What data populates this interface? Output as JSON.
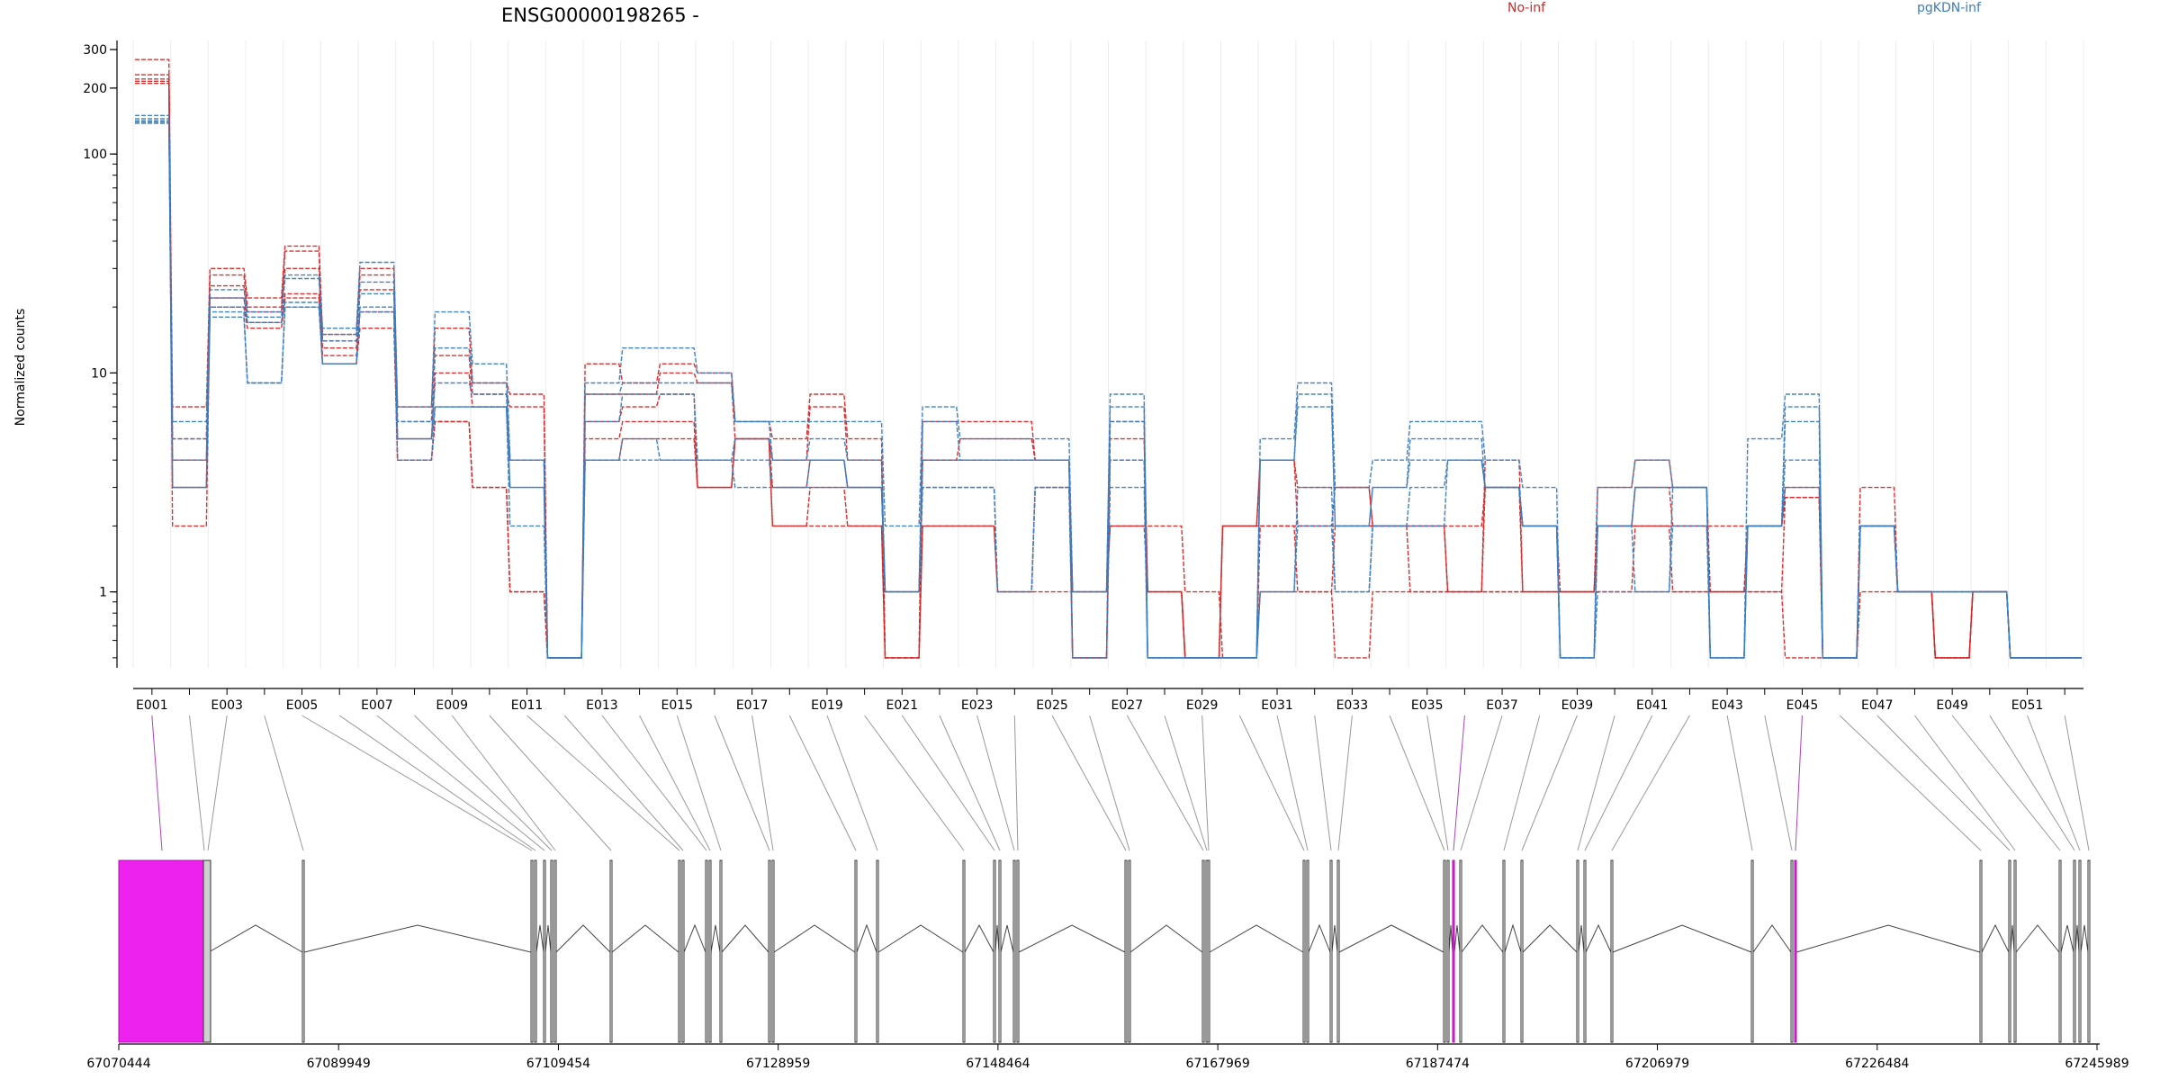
{
  "chart_data": {
    "type": "line",
    "title": "ENSG00000198265 -",
    "ylabel": "Normalized counts",
    "xlabel": "",
    "y_scale": "log",
    "ylim": [
      0.45,
      330
    ],
    "y_ticks": [
      1,
      10,
      100,
      200,
      300
    ],
    "y_tick_labels": [
      "1",
      "10",
      "100",
      "200",
      "300"
    ],
    "grid": "vertical lines at exon boundaries",
    "legend_position": "top",
    "legend": [
      {
        "name": "No-inf",
        "color": "#d62728"
      },
      {
        "name": "pgKDN-inf",
        "color": "#3a7dbf"
      }
    ],
    "categories": [
      "E001",
      "E002",
      "E003",
      "E004",
      "E005",
      "E006",
      "E007",
      "E008",
      "E009",
      "E010",
      "E011",
      "E012",
      "E013",
      "E014",
      "E015",
      "E016",
      "E017",
      "E018",
      "E019",
      "E020",
      "E021",
      "E022",
      "E023",
      "E024",
      "E025",
      "E026",
      "E027",
      "E028",
      "E029",
      "E030",
      "E031",
      "E032",
      "E033",
      "E034",
      "E035",
      "E036",
      "E037",
      "E038",
      "E039",
      "E040",
      "E041",
      "E042",
      "E043",
      "E044",
      "E045",
      "E046",
      "E047",
      "E048",
      "E049",
      "E050",
      "E051",
      "E052"
    ],
    "x_tick_labels": [
      "E001",
      "E003",
      "E005",
      "E007",
      "E009",
      "E011",
      "E013",
      "E015",
      "E017",
      "E019",
      "E021",
      "E023",
      "E025",
      "E027",
      "E029",
      "E031",
      "E033",
      "E035",
      "E037",
      "E039",
      "E041",
      "E043",
      "E045",
      "E047",
      "E049",
      "E051"
    ],
    "series": [
      {
        "name": "No-inf",
        "color": "#d62728",
        "values": [
          270,
          7,
          30,
          22,
          38,
          15,
          30,
          7,
          16,
          9,
          8,
          0.5,
          11,
          9,
          11,
          10,
          6,
          5,
          8,
          5,
          0.5,
          6,
          6,
          6,
          4,
          0.5,
          6,
          1,
          0.5,
          2,
          4,
          3,
          3,
          2,
          2,
          1,
          4,
          1,
          1,
          3,
          4,
          3,
          1,
          2,
          3,
          0.5,
          3,
          1,
          0.5,
          1,
          0.5,
          0.5
        ]
      },
      {
        "name": "No-inf",
        "color": "#d62728",
        "values": [
          230,
          5,
          28,
          20,
          36,
          14,
          28,
          6,
          12,
          8,
          7,
          0.5,
          8,
          8,
          10,
          9,
          5,
          4,
          7,
          4,
          0.5,
          4,
          5,
          5,
          4,
          0.5,
          5,
          1,
          0.5,
          2,
          4,
          2,
          3,
          2,
          2,
          1,
          3,
          1,
          1,
          2,
          3,
          2,
          1,
          2,
          2.7,
          0.5,
          2,
          1,
          0.5,
          1,
          0.5,
          0.5
        ]
      },
      {
        "name": "No-inf",
        "color": "#d62728",
        "values": [
          220,
          4,
          25,
          19,
          30,
          13,
          24,
          5,
          10,
          7,
          4,
          0.5,
          6,
          7,
          8,
          3,
          5,
          3,
          4,
          3,
          1,
          4,
          4,
          4,
          4,
          0.5,
          4,
          1,
          0.5,
          2,
          2,
          2,
          2,
          2,
          2,
          2,
          3,
          2,
          1,
          2,
          2,
          2,
          2,
          2,
          2.7,
          0.5,
          2,
          1,
          0.5,
          1,
          0.5,
          0.5
        ]
      },
      {
        "name": "No-inf",
        "color": "#d62728",
        "values": [
          215,
          3,
          22,
          17,
          23,
          12,
          19,
          4,
          6,
          3,
          1,
          0.5,
          5,
          6,
          6,
          3,
          5,
          2,
          3,
          2,
          0.5,
          2,
          2,
          1,
          3,
          1,
          2,
          2,
          1,
          0.5,
          2,
          1,
          2,
          2,
          1,
          1,
          1,
          1,
          1,
          1,
          2,
          1,
          1,
          1,
          2.7,
          0.5,
          2,
          1,
          0.5,
          1,
          0.5,
          0.5
        ]
      },
      {
        "name": "No-inf",
        "color": "#d62728",
        "values": [
          210,
          2,
          20,
          16,
          22,
          11,
          16,
          4,
          6,
          3,
          1,
          0.5,
          4,
          5,
          5,
          3,
          5,
          2,
          2,
          2,
          0.5,
          2,
          2,
          1,
          1,
          1,
          2,
          1,
          0.5,
          0.5,
          1,
          1,
          0.5,
          1,
          1,
          1,
          1,
          1,
          1,
          1,
          1,
          1,
          1,
          1,
          0.5,
          0.5,
          1,
          1,
          0.5,
          1,
          0.5,
          0.5
        ]
      },
      {
        "name": "pgKDN-inf",
        "color": "#3a7dbf",
        "values": [
          150,
          6,
          24,
          19,
          28,
          16,
          32,
          7,
          19,
          11,
          4,
          0.5,
          9,
          13,
          13,
          10,
          6,
          6,
          6,
          6,
          2,
          7,
          5,
          5,
          5,
          1,
          8,
          0.5,
          0.5,
          0.5,
          5,
          9,
          3,
          4,
          6,
          6,
          4,
          3,
          0.5,
          3,
          4,
          3,
          0.5,
          5,
          8,
          0.5,
          2,
          1,
          1,
          1,
          0.5,
          0.5
        ]
      },
      {
        "name": "pgKDN-inf",
        "color": "#3a7dbf",
        "values": [
          145,
          5,
          22,
          18,
          27,
          15,
          26,
          6,
          13,
          9,
          4,
          0.5,
          8,
          9,
          9,
          9,
          6,
          4,
          5,
          4,
          1,
          6,
          4,
          4,
          4,
          1,
          7,
          0.5,
          0.5,
          0.5,
          4,
          8,
          2,
          3,
          5,
          5,
          3,
          2,
          0.5,
          2,
          3,
          3,
          0.5,
          2,
          7,
          0.5,
          2,
          1,
          1,
          1,
          0.5,
          0.5
        ]
      },
      {
        "name": "pgKDN-inf",
        "color": "#3a7dbf",
        "values": [
          142,
          4,
          20,
          17,
          21,
          14,
          23,
          5,
          9,
          8,
          3,
          0.5,
          6,
          8,
          8,
          4,
          5,
          4,
          4,
          3,
          1,
          4,
          4,
          4,
          4,
          1,
          6,
          0.5,
          0.5,
          0.5,
          4,
          7,
          2,
          3,
          4,
          4,
          3,
          2,
          0.5,
          2,
          3,
          3,
          0.5,
          2,
          6,
          0.5,
          2,
          1,
          1,
          1,
          0.5,
          0.5
        ]
      },
      {
        "name": "pgKDN-inf",
        "color": "#3a7dbf",
        "values": [
          140,
          3,
          19,
          9,
          20,
          11,
          20,
          5,
          7,
          7,
          3,
          0.5,
          4,
          5,
          4,
          4,
          4,
          3,
          4,
          3,
          1,
          3,
          3,
          1,
          3,
          0.5,
          4,
          0.5,
          0.5,
          0.5,
          1,
          3,
          1,
          2,
          3,
          4,
          3,
          2,
          0.5,
          2,
          1,
          3,
          0.5,
          2,
          4,
          0.5,
          2,
          1,
          1,
          1,
          0.5,
          0.5
        ]
      },
      {
        "name": "pgKDN-inf",
        "color": "#3a7dbf",
        "values": [
          138,
          3,
          18,
          9,
          20,
          11,
          19,
          4,
          7,
          7,
          2,
          0.5,
          4,
          4,
          4,
          4,
          3,
          3,
          3,
          3,
          1,
          3,
          3,
          1,
          3,
          0.5,
          3,
          0.5,
          0.5,
          0.5,
          1,
          2,
          1,
          2,
          2,
          4,
          3,
          2,
          0.5,
          1,
          1,
          2,
          0.5,
          2,
          3,
          0.5,
          2,
          1,
          1,
          1,
          0.5,
          0.5
        ]
      }
    ],
    "gene_model": {
      "genomic_ticks": [
        "67070444",
        "67089949",
        "67109454",
        "67128959",
        "67148464",
        "67167969",
        "67187474",
        "67206979",
        "67226484",
        "67245989"
      ],
      "highlighted_exons": [
        "E001",
        "E036",
        "E045"
      ],
      "highlight_color": "#ee22ee"
    }
  }
}
